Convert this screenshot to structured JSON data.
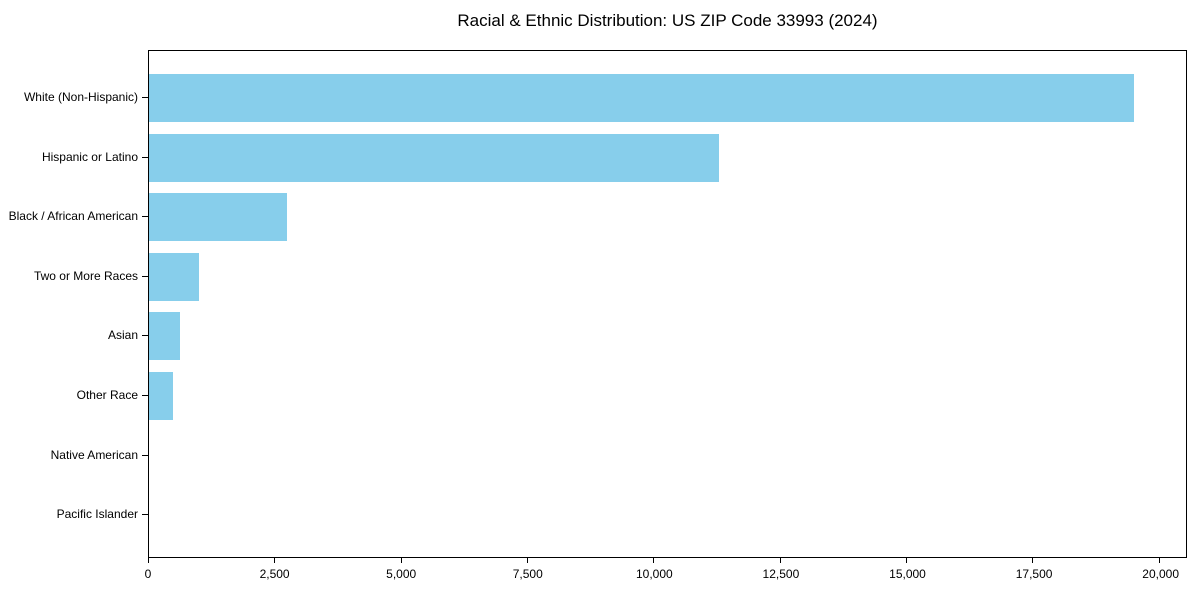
{
  "page": {
    "background_color": "#ffffff"
  },
  "chart_data": {
    "type": "bar",
    "orientation": "horizontal",
    "title": "Racial & Ethnic Distribution: US ZIP Code 33993 (2024)",
    "categories": [
      "White (Non-Hispanic)",
      "Hispanic or Latino",
      "Black / African American",
      "Two or More Races",
      "Asian",
      "Other Race",
      "Native American",
      "Pacific Islander"
    ],
    "values": [
      19500,
      11270,
      2740,
      990,
      610,
      470,
      0,
      0
    ],
    "xlabel": "",
    "ylabel": "",
    "xlim": [
      0,
      20520
    ],
    "xticks": [
      0,
      2500,
      5000,
      7500,
      10000,
      12500,
      15000,
      17500,
      20000
    ],
    "xtick_labels": [
      "0",
      "2,500",
      "5,000",
      "7,500",
      "10,000",
      "12,500",
      "15,000",
      "17,500",
      "20,000"
    ],
    "bar_color": "#87CEEB",
    "axis_color": "#000000",
    "text_color": "#000000",
    "grid": false,
    "legend": null
  }
}
